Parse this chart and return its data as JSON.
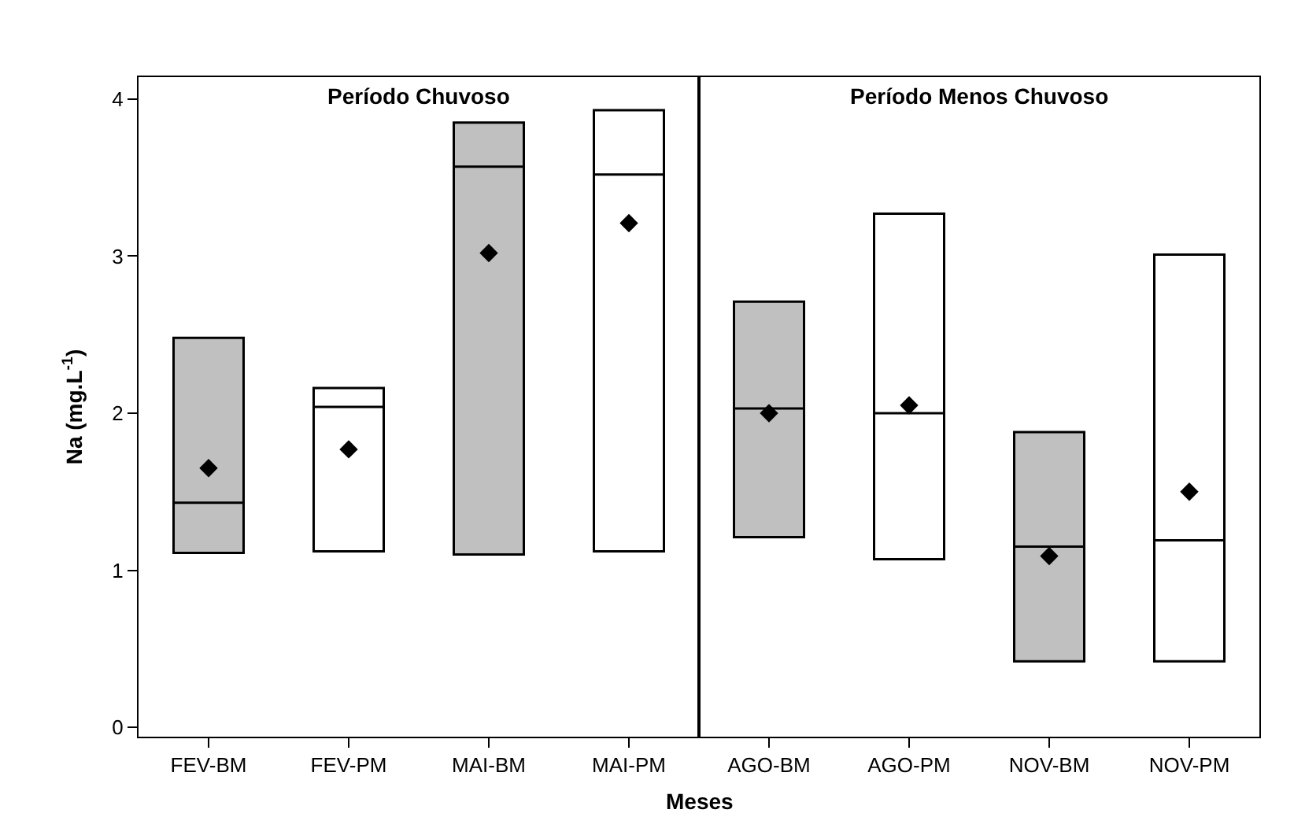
{
  "chart_data": [
    {
      "type": "box",
      "title": "Período Chuvoso",
      "ylabel": "Na (mg.L$^{-1}$)",
      "categories": [
        "FEV-BM",
        "FEV-PM",
        "MAI-BM",
        "MAI-PM"
      ],
      "colors": [
        "#c0c0c0",
        "#ffffff",
        "#c0c0c0",
        "#ffffff"
      ],
      "ylim": [
        -0.06,
        4.14
      ],
      "yticks": [
        0,
        1,
        2,
        3,
        4
      ],
      "marker": "diamond",
      "boxes": [
        {
          "low": 1.11,
          "q1": 1.11,
          "median": 1.43,
          "q3": 2.48,
          "high": 2.48,
          "mean": 1.65
        },
        {
          "low": 1.12,
          "q1": 1.12,
          "median": 2.04,
          "q3": 2.16,
          "high": 2.16,
          "mean": 1.77
        },
        {
          "low": 1.1,
          "q1": 1.1,
          "median": 3.57,
          "q3": 3.85,
          "high": 3.85,
          "mean": 3.02
        },
        {
          "low": 1.12,
          "q1": 1.12,
          "median": 3.52,
          "q3": 3.93,
          "high": 3.93,
          "mean": 3.21
        }
      ]
    },
    {
      "type": "box",
      "title": "Período Menos Chuvoso",
      "xlabel": "Meses",
      "categories": [
        "AGO-BM",
        "AGO-PM",
        "NOV-BM",
        "NOV-PM"
      ],
      "colors": [
        "#c0c0c0",
        "#ffffff",
        "#c0c0c0",
        "#ffffff"
      ],
      "ylim": [
        -0.06,
        4.14
      ],
      "tick_labels": "x",
      "marker": "diamond",
      "boxes": [
        {
          "low": 1.21,
          "q1": 1.21,
          "median": 2.03,
          "q3": 2.71,
          "high": 2.71,
          "mean": 2.0
        },
        {
          "low": 1.07,
          "q1": 1.07,
          "median": 2.0,
          "q3": 3.27,
          "high": 3.27,
          "mean": 2.05
        },
        {
          "low": 0.42,
          "q1": 0.42,
          "median": 1.15,
          "q3": 1.88,
          "high": 1.88,
          "mean": 1.09
        },
        {
          "low": 0.42,
          "q1": 0.42,
          "median": 1.19,
          "q3": 3.01,
          "high": 3.01,
          "mean": 1.5
        }
      ]
    }
  ]
}
